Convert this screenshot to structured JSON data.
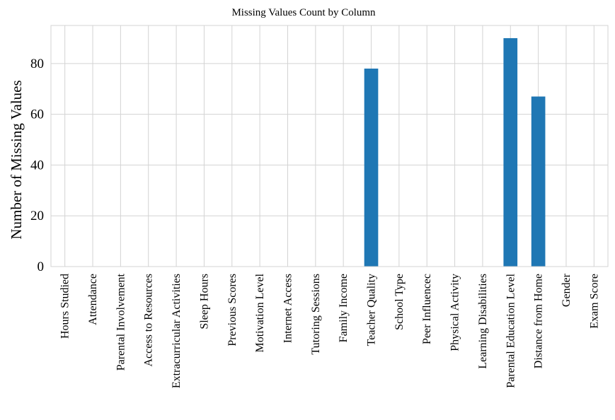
{
  "chart_data": {
    "type": "bar",
    "title": "Missing Values Count by Column",
    "xlabel": "",
    "ylabel": "Number of Missing Values",
    "ylim": [
      0,
      95
    ],
    "yticks": [
      0,
      20,
      40,
      60,
      80
    ],
    "grid": true,
    "bar_color": "#1f77b4",
    "grid_color": "#d3d3d3",
    "categories": [
      "Hours Studied",
      "Attendance",
      "Parental Involvement",
      "Access to Resources",
      "Extracurricular Activities",
      "Sleep Hours",
      "Previous Scores",
      "Motivation Level",
      "Internet Access",
      "Tutoring Sessions",
      "Family Income",
      "Teacher Quality",
      "School Type",
      "Peer Influencec",
      "Physical Activity",
      "Learning Disabilities",
      "Parental Education Level",
      "Distance from Home",
      "Gender",
      "Exam Score"
    ],
    "values": [
      0,
      0,
      0,
      0,
      0,
      0,
      0,
      0,
      0,
      0,
      0,
      78,
      0,
      0,
      0,
      0,
      90,
      67,
      0,
      0
    ]
  }
}
